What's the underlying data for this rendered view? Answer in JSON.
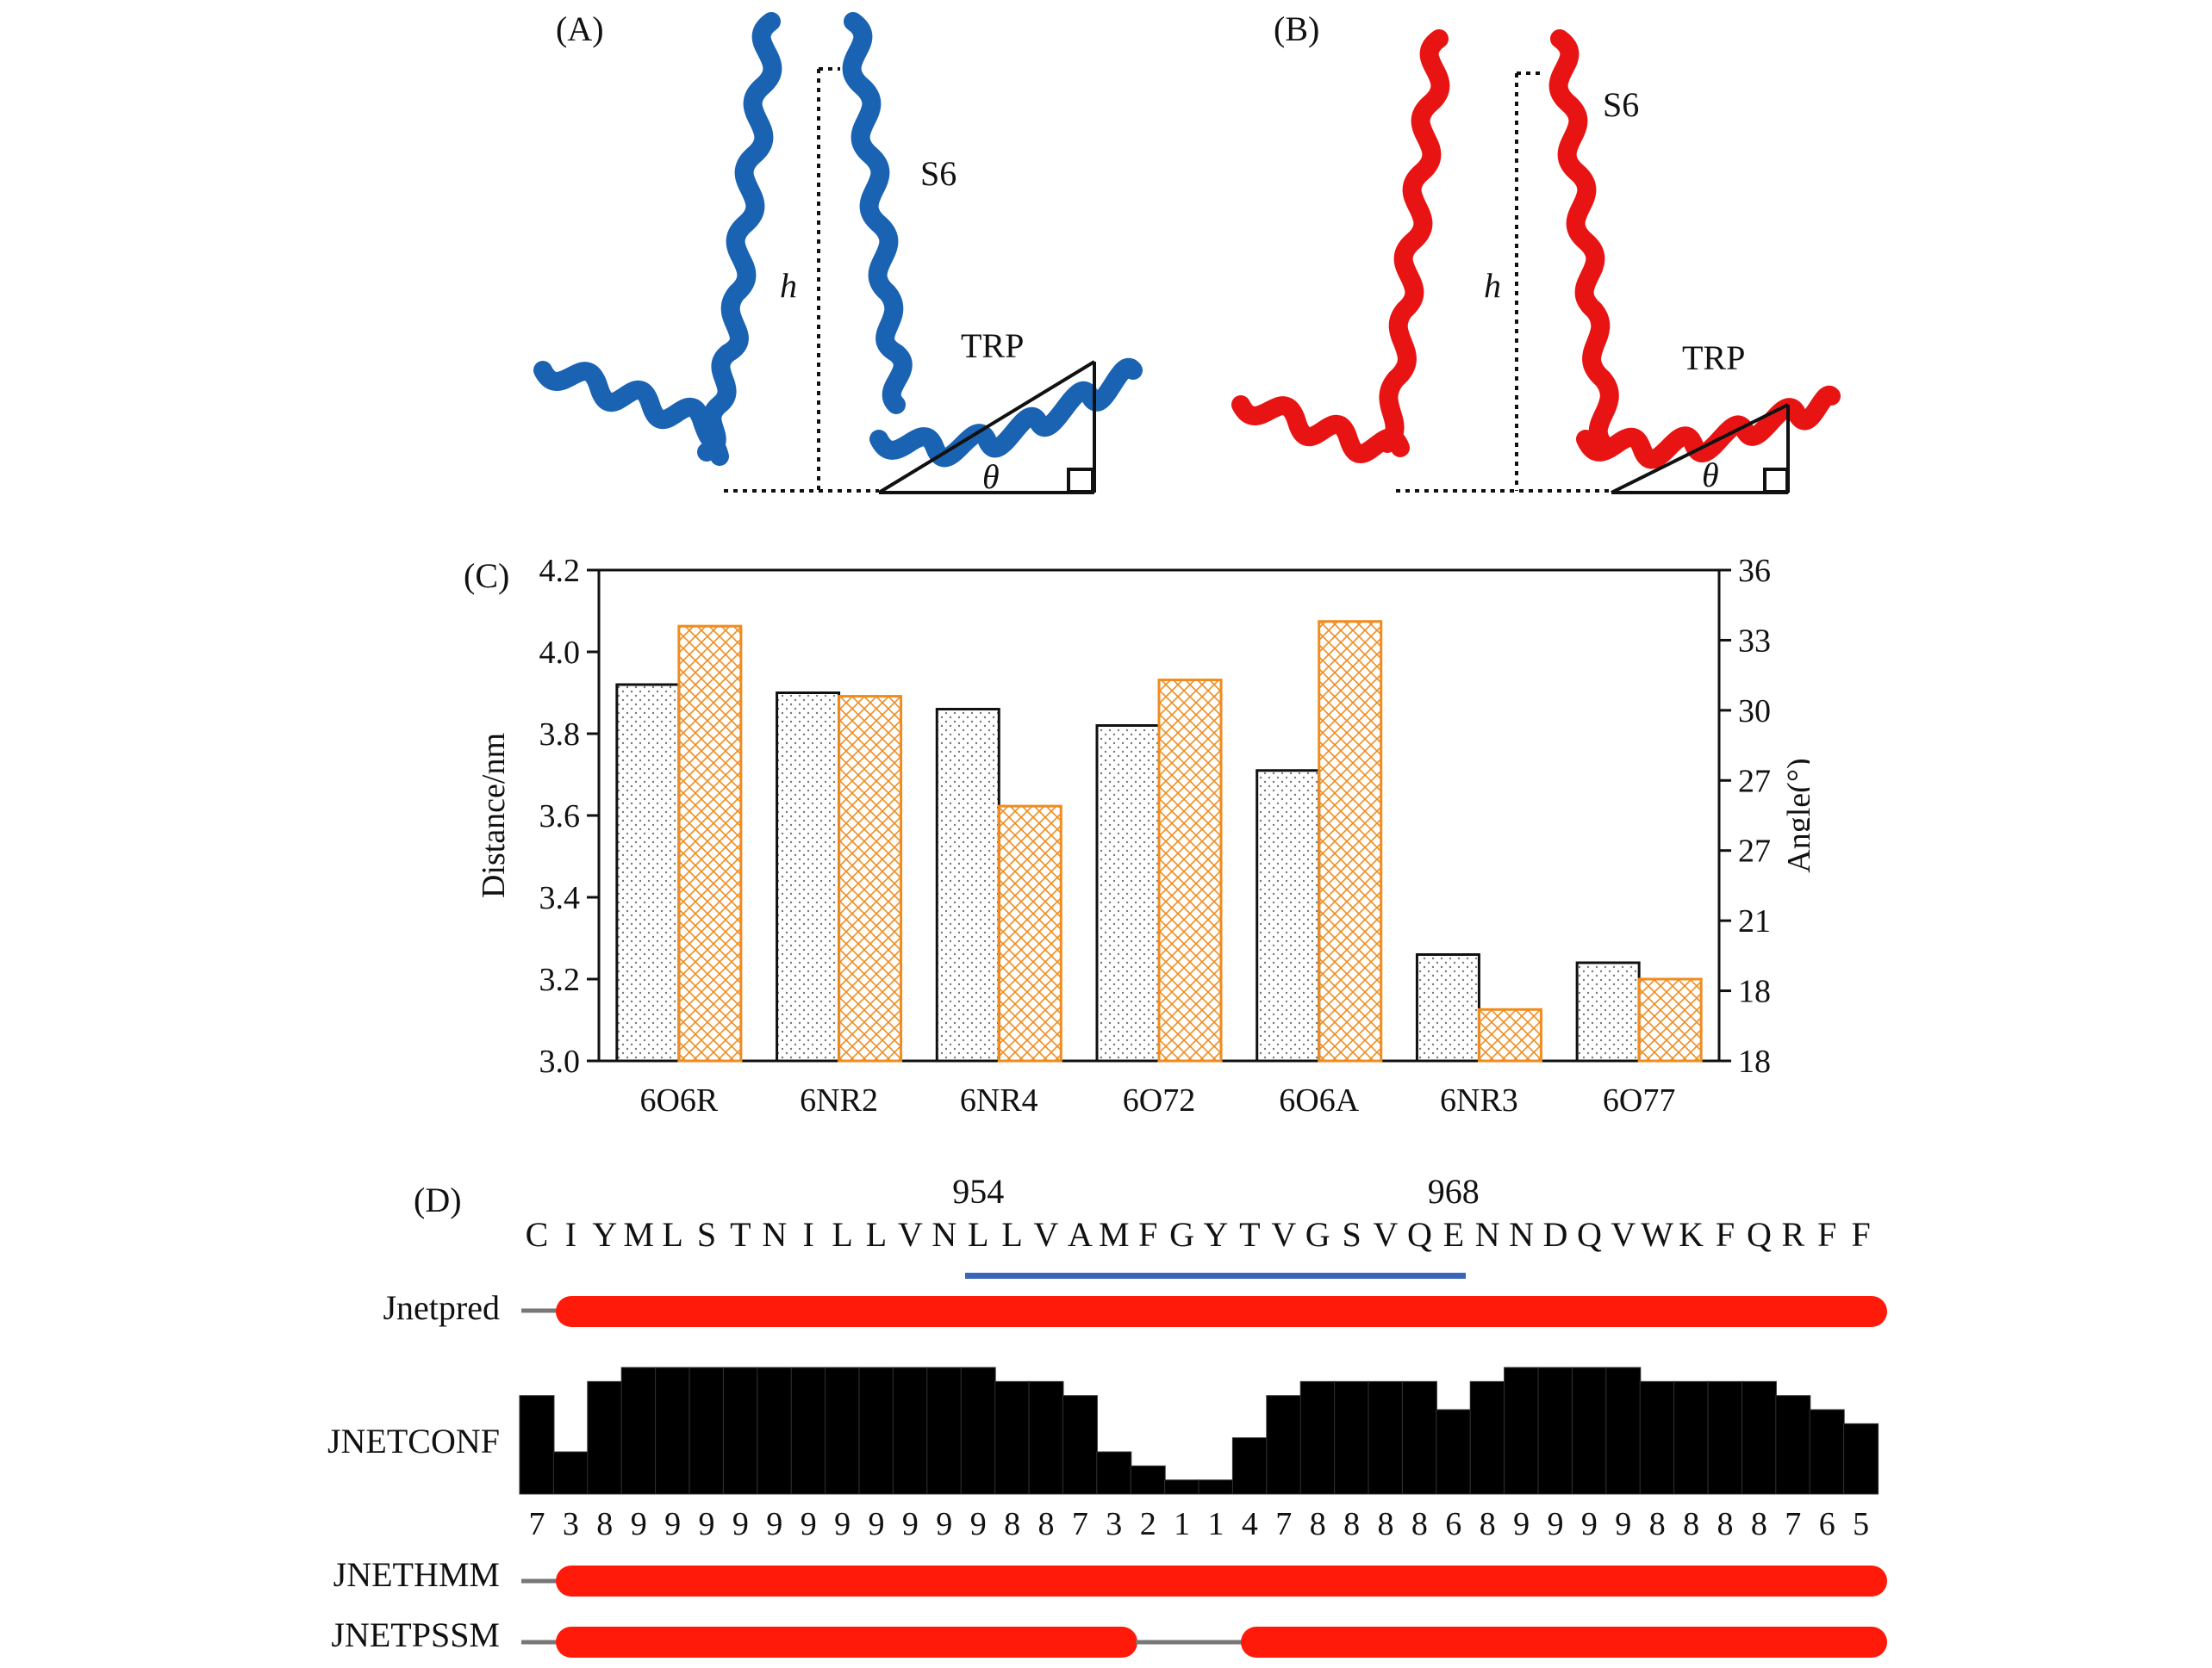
{
  "panel_a": {
    "label": "(A)",
    "helix_label": "S6",
    "height_label": "h",
    "domain_label": "TRP",
    "angle_label": "θ",
    "color": "#1a63b3"
  },
  "panel_b": {
    "label": "(B)",
    "helix_label": "S6",
    "height_label": "h",
    "domain_label": "TRP",
    "angle_label": "θ",
    "color": "#e81414"
  },
  "panel_c": {
    "label": "(C)"
  },
  "chart_data": {
    "type": "bar",
    "categories": [
      "6O6R",
      "6NR2",
      "6NR4",
      "6O72",
      "6O6A",
      "6NR3",
      "6O77"
    ],
    "series": [
      {
        "values": [
          3.92,
          3.9,
          3.86,
          3.82,
          3.71,
          3.26,
          3.24
        ],
        "axis": "left",
        "color": "#000000",
        "pattern": "dots"
      },
      {
        "values": [
          33.6,
          30.6,
          25.9,
          31.3,
          33.8,
          17.2,
          18.5
        ],
        "axis": "right",
        "color": "#f08c1e",
        "pattern": "crosshatch"
      }
    ],
    "ylabel": "Distance/nm",
    "ylabel_right": "Angle(°)",
    "ylim": [
      3.0,
      4.2
    ],
    "ylim_right": [
      15,
      36
    ],
    "left_ticks": [
      "3.0",
      "3.2",
      "3.4",
      "3.6",
      "3.8",
      "4.0",
      "4.2"
    ],
    "right_ticks": [
      "18",
      "18",
      "21",
      "27",
      "27",
      "30",
      "33",
      "36"
    ],
    "grid": false
  },
  "panel_d": {
    "label": "(D)",
    "sequence": [
      "C",
      "I",
      "Y",
      "M",
      "L",
      "S",
      "T",
      "N",
      "I",
      "L",
      "L",
      "V",
      "N",
      "L",
      "L",
      "V",
      "A",
      "M",
      "F",
      "G",
      "Y",
      "T",
      "V",
      "G",
      "S",
      "V",
      "Q",
      "E",
      "N",
      "N",
      "D",
      "Q",
      "V",
      "W",
      "K",
      "F",
      "Q",
      "R",
      "F",
      "F"
    ],
    "residue_marks": [
      {
        "text": "954",
        "index": 13
      },
      {
        "text": "968",
        "index": 27
      }
    ],
    "highlight_range": [
      13,
      27
    ],
    "highlight_color": "#3a66b8",
    "tracks": {
      "jnetpred": "Jnetpred",
      "jnetconf": "JNETCONF",
      "jnethmm": "JNETHMM",
      "jnetpssm": "JNETPSSM"
    },
    "confidence": [
      7,
      3,
      8,
      9,
      9,
      9,
      9,
      9,
      9,
      9,
      9,
      9,
      9,
      9,
      8,
      8,
      7,
      3,
      2,
      1,
      1,
      4,
      7,
      8,
      8,
      8,
      8,
      6,
      8,
      9,
      9,
      9,
      9,
      8,
      8,
      8,
      8,
      7,
      6,
      5
    ],
    "helix_color": "#ff1a0a"
  }
}
